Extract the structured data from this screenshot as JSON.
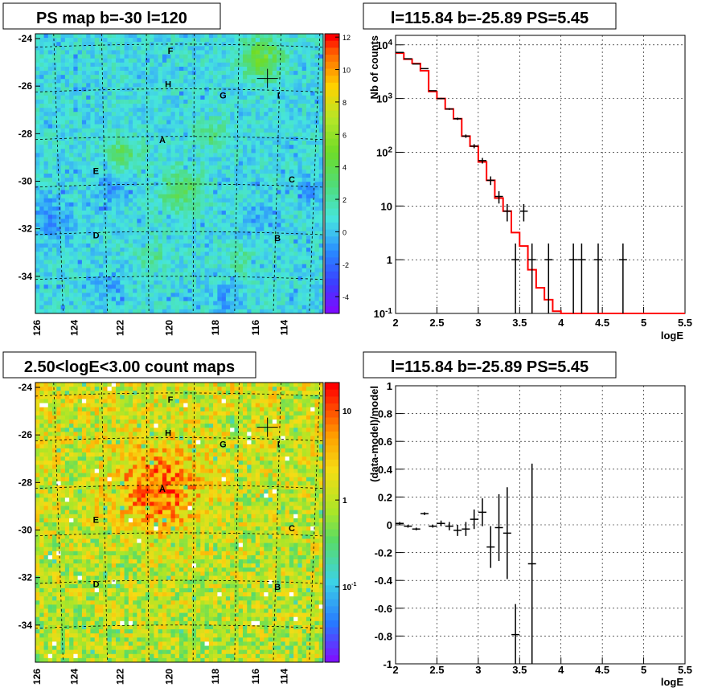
{
  "panels": {
    "map_ps": {
      "title": "PS map b=-30 l=120",
      "x_ticks": [
        "126",
        "124",
        "122",
        "120",
        "118",
        "116",
        "114"
      ],
      "y_ticks": [
        "-24",
        "-26",
        "-28",
        "-30",
        "-32",
        "-34"
      ],
      "colorbar_ticks": [
        "12",
        "10",
        "8",
        "6",
        "4",
        "2",
        "0",
        "-2",
        "-4"
      ],
      "sources": [
        "F",
        "H",
        "G",
        "I",
        "A",
        "E",
        "C",
        "D",
        "B"
      ]
    },
    "map_counts": {
      "title": "2.50<logE<3.00 count maps",
      "x_ticks": [
        "126",
        "124",
        "122",
        "120",
        "118",
        "116",
        "114"
      ],
      "y_ticks": [
        "-24",
        "-26",
        "-28",
        "-30",
        "-32",
        "-34"
      ],
      "colorbar_ticks": [
        "10",
        "1",
        "10⁻¹"
      ],
      "sources": [
        "F",
        "H",
        "G",
        "I",
        "A",
        "E",
        "C",
        "D",
        "B"
      ]
    }
  },
  "chart_data": [
    {
      "type": "line",
      "title": "l=115.84 b=-25.89 PS=5.45",
      "xlabel": "logE",
      "ylabel": "Nb of counts",
      "yscale": "log",
      "xlim": [
        2,
        5.5
      ],
      "ylim": [
        0.1,
        15000
      ],
      "x_ticks": [
        "2",
        "2.5",
        "3",
        "3.5",
        "4",
        "4.5",
        "5",
        "5.5"
      ],
      "y_ticks": [
        "10⁻¹",
        "1",
        "10",
        "10²",
        "10³",
        "10⁴"
      ],
      "grid": true,
      "model_color": "#ff0000",
      "data_points": {
        "x": [
          2.05,
          2.15,
          2.25,
          2.35,
          2.45,
          2.55,
          2.65,
          2.75,
          2.85,
          2.95,
          3.05,
          3.15,
          3.25,
          3.35,
          3.45,
          3.55,
          3.65,
          3.85,
          4.15,
          4.25,
          4.45,
          4.75
        ],
        "y": [
          7200,
          5500,
          4400,
          3600,
          1400,
          1000,
          640,
          420,
          200,
          130,
          70,
          30,
          15,
          8,
          1,
          8,
          1,
          1,
          1,
          1,
          1,
          1
        ]
      },
      "model_step": {
        "edges": [
          2.0,
          2.1,
          2.2,
          2.3,
          2.4,
          2.5,
          2.6,
          2.7,
          2.8,
          2.9,
          3.0,
          3.1,
          3.2,
          3.3,
          3.4,
          3.5,
          3.6,
          3.7,
          3.8,
          3.9,
          4.0,
          5.5
        ],
        "values": [
          7000,
          5400,
          4500,
          3300,
          1350,
          1000,
          640,
          420,
          200,
          130,
          66,
          30,
          14,
          8,
          3.2,
          1.8,
          0.65,
          0.3,
          0.18,
          0.11,
          0.1
        ]
      }
    },
    {
      "type": "scatter",
      "title": "l=115.84 b=-25.89 PS=5.45",
      "xlabel": "logE",
      "ylabel": "(data-model)/model",
      "xlim": [
        2,
        5.5
      ],
      "ylim": [
        -1,
        1
      ],
      "x_ticks": [
        "2",
        "2.5",
        "3",
        "3.5",
        "4",
        "4.5",
        "5",
        "5.5"
      ],
      "y_ticks": [
        "1",
        "0.8",
        "0.6",
        "0.4",
        "0.2",
        "0",
        "-0.2",
        "-0.4",
        "-0.6",
        "-0.8",
        "-1"
      ],
      "grid": true,
      "x": [
        2.05,
        2.15,
        2.25,
        2.35,
        2.45,
        2.55,
        2.65,
        2.75,
        2.85,
        2.95,
        3.05,
        3.15,
        3.25,
        3.35,
        3.45,
        3.65
      ],
      "y": [
        0.01,
        -0.01,
        -0.03,
        0.08,
        -0.01,
        0.01,
        -0.01,
        -0.04,
        -0.03,
        0.04,
        0.09,
        -0.16,
        -0.02,
        -0.06,
        -0.79,
        -0.28
      ],
      "err": [
        0.01,
        0.01,
        0.01,
        0.01,
        0.01,
        0.02,
        0.03,
        0.04,
        0.05,
        0.07,
        0.1,
        0.15,
        0.24,
        0.33,
        0.22,
        0.72
      ]
    }
  ]
}
